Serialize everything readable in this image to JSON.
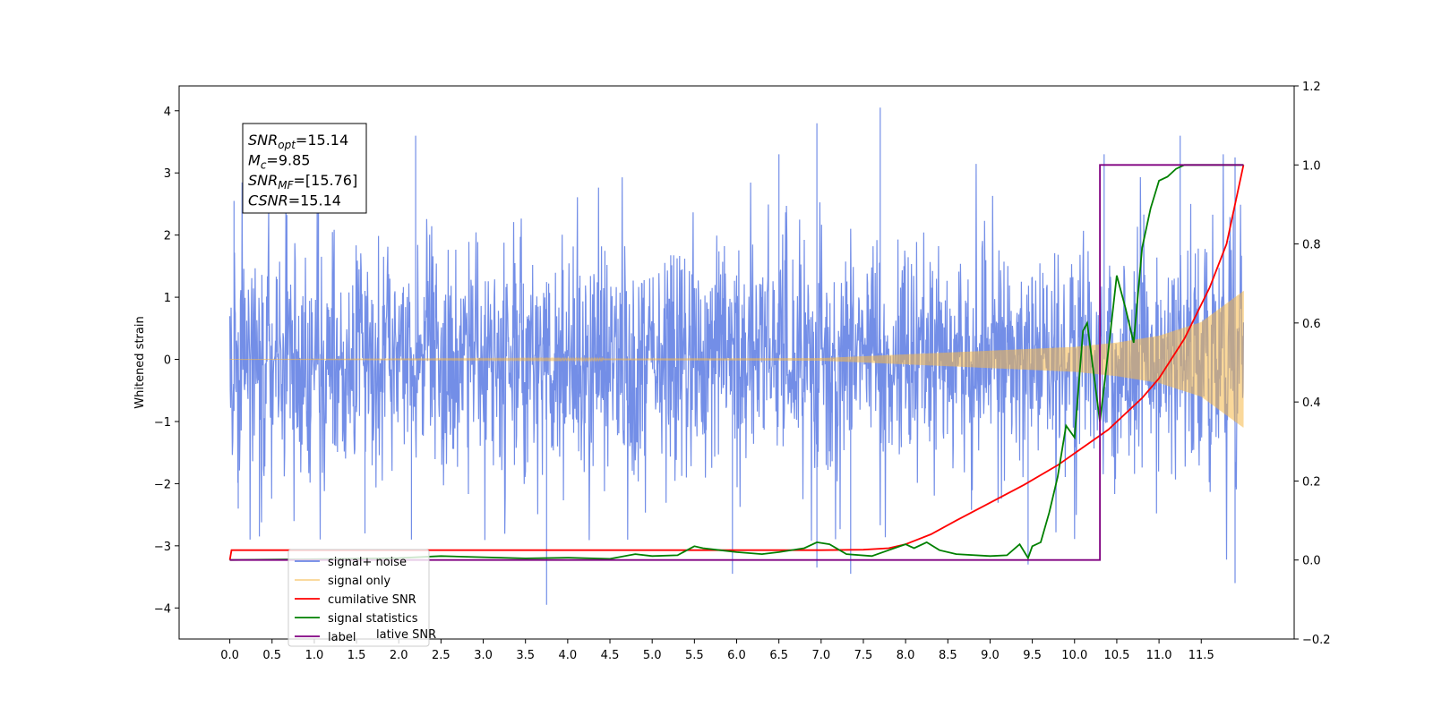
{
  "chart_data": {
    "type": "line",
    "title": "",
    "xlabel": "",
    "ylabel": "Whitened strain",
    "xlim": [
      -0.6,
      12.6
    ],
    "ylim": [
      -4.5,
      4.4
    ],
    "y2lim": [
      -0.2,
      1.2
    ],
    "x_ticks": [
      0.0,
      0.5,
      1.0,
      1.5,
      2.0,
      2.5,
      3.0,
      3.5,
      4.0,
      4.5,
      5.0,
      5.5,
      6.0,
      6.5,
      7.0,
      7.5,
      8.0,
      8.5,
      9.0,
      9.5,
      10.0,
      10.5,
      11.0,
      11.5
    ],
    "x_tick_labels": [
      "0.0",
      "0.5",
      "1.0",
      "1.5",
      "2.0",
      "2.5",
      "3.0",
      "3.5",
      "4.0",
      "4.5",
      "5.0",
      "5.5",
      "6.0",
      "6.5",
      "7.0",
      "7.5",
      "8.0",
      "8.5",
      "9.0",
      "9.5",
      "10.0",
      "10.5",
      "11.0",
      "11.5"
    ],
    "y_ticks": [
      -4,
      -3,
      -2,
      -1,
      0,
      1,
      2,
      3,
      4
    ],
    "y_tick_labels": [
      "−4",
      "−3",
      "−2",
      "−1",
      "0",
      "1",
      "2",
      "3",
      "4"
    ],
    "y2_ticks": [
      -0.2,
      0.0,
      0.2,
      0.4,
      0.6,
      0.8,
      1.0,
      1.2
    ],
    "y2_tick_labels": [
      "−0.2",
      "0.0",
      "0.2",
      "0.4",
      "0.6",
      "0.8",
      "1.0",
      "1.2"
    ],
    "grid": false,
    "legend_position": "lower-left",
    "series": [
      {
        "name": "signal+ noise",
        "color": "#6b88e6",
        "axis": "left",
        "description_values": {
          "x_start": 0.0,
          "x_end": 12.0,
          "typical_range": [
            -2.0,
            2.6
          ],
          "extremes": [
            -3.95,
            4.05
          ]
        },
        "spikes": [
          {
            "x": 0.05,
            "y": 2.55
          },
          {
            "x": 0.1,
            "y": -2.4
          },
          {
            "x": 0.35,
            "y": -2.85
          },
          {
            "x": 1.05,
            "y": 3.1
          },
          {
            "x": 1.6,
            "y": -2.8
          },
          {
            "x": 2.2,
            "y": 3.6
          },
          {
            "x": 2.15,
            "y": -2.9
          },
          {
            "x": 3.75,
            "y": -3.95
          },
          {
            "x": 5.95,
            "y": -3.45
          },
          {
            "x": 6.5,
            "y": 3.3
          },
          {
            "x": 6.95,
            "y": 3.8
          },
          {
            "x": 6.95,
            "y": -3.35
          },
          {
            "x": 7.35,
            "y": -3.45
          },
          {
            "x": 7.7,
            "y": 4.05
          },
          {
            "x": 9.45,
            "y": -3.3
          },
          {
            "x": 10.35,
            "y": 3.3
          },
          {
            "x": 11.25,
            "y": 3.6
          },
          {
            "x": 11.9,
            "y": -3.6
          },
          {
            "x": 11.9,
            "y": 3.25
          }
        ]
      },
      {
        "name": "signal only",
        "color": "#f5b847",
        "axis": "left",
        "envelope": [
          {
            "x": 0.0,
            "amp": 0.0
          },
          {
            "x": 7.0,
            "amp": 0.02
          },
          {
            "x": 8.0,
            "amp": 0.08
          },
          {
            "x": 9.0,
            "amp": 0.14
          },
          {
            "x": 10.0,
            "amp": 0.2
          },
          {
            "x": 10.5,
            "amp": 0.27
          },
          {
            "x": 11.0,
            "amp": 0.38
          },
          {
            "x": 11.5,
            "amp": 0.6
          },
          {
            "x": 12.0,
            "amp": 1.1
          }
        ]
      },
      {
        "name": "cumilative SNR",
        "color": "#ff0000",
        "axis": "right",
        "x": [
          0.0,
          0.02,
          1.0,
          2.0,
          3.0,
          4.0,
          5.0,
          6.0,
          7.0,
          7.5,
          7.8,
          8.0,
          8.3,
          8.6,
          9.0,
          9.4,
          9.8,
          10.0,
          10.4,
          10.8,
          11.0,
          11.3,
          11.6,
          11.8,
          12.0
        ],
        "y": [
          0.0,
          0.025,
          0.025,
          0.025,
          0.025,
          0.025,
          0.025,
          0.025,
          0.025,
          0.026,
          0.03,
          0.04,
          0.065,
          0.1,
          0.145,
          0.19,
          0.24,
          0.27,
          0.33,
          0.41,
          0.46,
          0.56,
          0.69,
          0.8,
          1.0
        ]
      },
      {
        "name": "signal statistics",
        "color": "#008000",
        "axis": "right",
        "x": [
          0.0,
          1.0,
          2.0,
          2.5,
          3.5,
          4.0,
          4.5,
          4.8,
          5.0,
          5.3,
          5.5,
          5.6,
          5.8,
          6.0,
          6.3,
          6.5,
          6.8,
          6.95,
          7.1,
          7.3,
          7.6,
          7.8,
          8.0,
          8.1,
          8.25,
          8.4,
          8.6,
          9.0,
          9.2,
          9.35,
          9.45,
          9.5,
          9.6,
          9.7,
          9.8,
          9.9,
          10.0,
          10.1,
          10.15,
          10.3,
          10.4,
          10.5,
          10.6,
          10.7,
          10.8,
          10.9,
          11.0,
          11.1,
          11.2,
          11.3,
          11.5,
          11.7,
          11.9,
          12.0
        ],
        "y": [
          0.0,
          0.002,
          0.005,
          0.01,
          0.004,
          0.006,
          0.003,
          0.015,
          0.01,
          0.012,
          0.035,
          0.03,
          0.025,
          0.02,
          0.015,
          0.02,
          0.03,
          0.045,
          0.04,
          0.015,
          0.01,
          0.025,
          0.04,
          0.03,
          0.045,
          0.025,
          0.015,
          0.01,
          0.012,
          0.04,
          0.005,
          0.035,
          0.045,
          0.12,
          0.21,
          0.34,
          0.31,
          0.58,
          0.6,
          0.35,
          0.53,
          0.72,
          0.64,
          0.55,
          0.79,
          0.89,
          0.96,
          0.97,
          0.99,
          1.0,
          1.0,
          1.0,
          1.0,
          1.0
        ]
      },
      {
        "name": "label",
        "color": "#800080",
        "axis": "right",
        "x": [
          0.0,
          10.3,
          10.3,
          12.0
        ],
        "y": [
          0.0,
          0.0,
          1.0,
          1.0
        ]
      }
    ],
    "legend_entries": [
      "signal+ noise",
      "signal only",
      "cumilative SNR",
      "signal statistics",
      "label"
    ],
    "legend_occluded_text": "lative SNR",
    "annotation": {
      "lines": [
        {
          "symbol": "SNR",
          "subscript": "opt",
          "value": "=15.14"
        },
        {
          "symbol": "M",
          "subscript": "c",
          "value": "=9.85"
        },
        {
          "symbol": "SNR",
          "subscript": "MF",
          "value": "=[15.76]"
        },
        {
          "symbol": "CSNR",
          "subscript": "",
          "value": "=15.14"
        }
      ]
    }
  }
}
